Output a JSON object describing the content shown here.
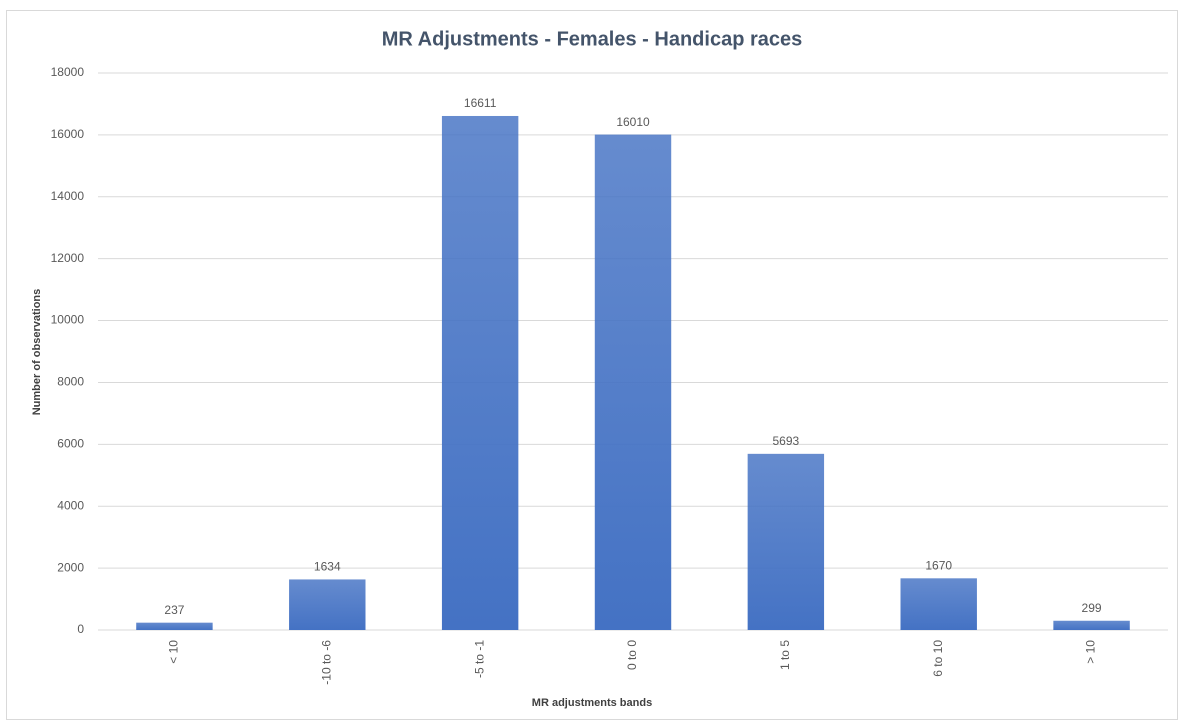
{
  "chart_data": {
    "type": "bar",
    "title": "MR Adjustments - Females - Handicap races",
    "x_label": "MR adjustments bands",
    "y_label": "Number of observations",
    "categories": [
      "< 10",
      "-10 to -6",
      "-5 to -1",
      "0 to 0",
      "1 to 5",
      "6 to 10",
      "> 10"
    ],
    "values": [
      237,
      1634,
      16611,
      16010,
      5693,
      1670,
      299
    ],
    "color": "#4472c4",
    "ylim": [
      0,
      18000
    ],
    "yticks": [
      0,
      2000,
      4000,
      6000,
      8000,
      10000,
      12000,
      14000,
      16000,
      18000
    ],
    "grid": true
  }
}
